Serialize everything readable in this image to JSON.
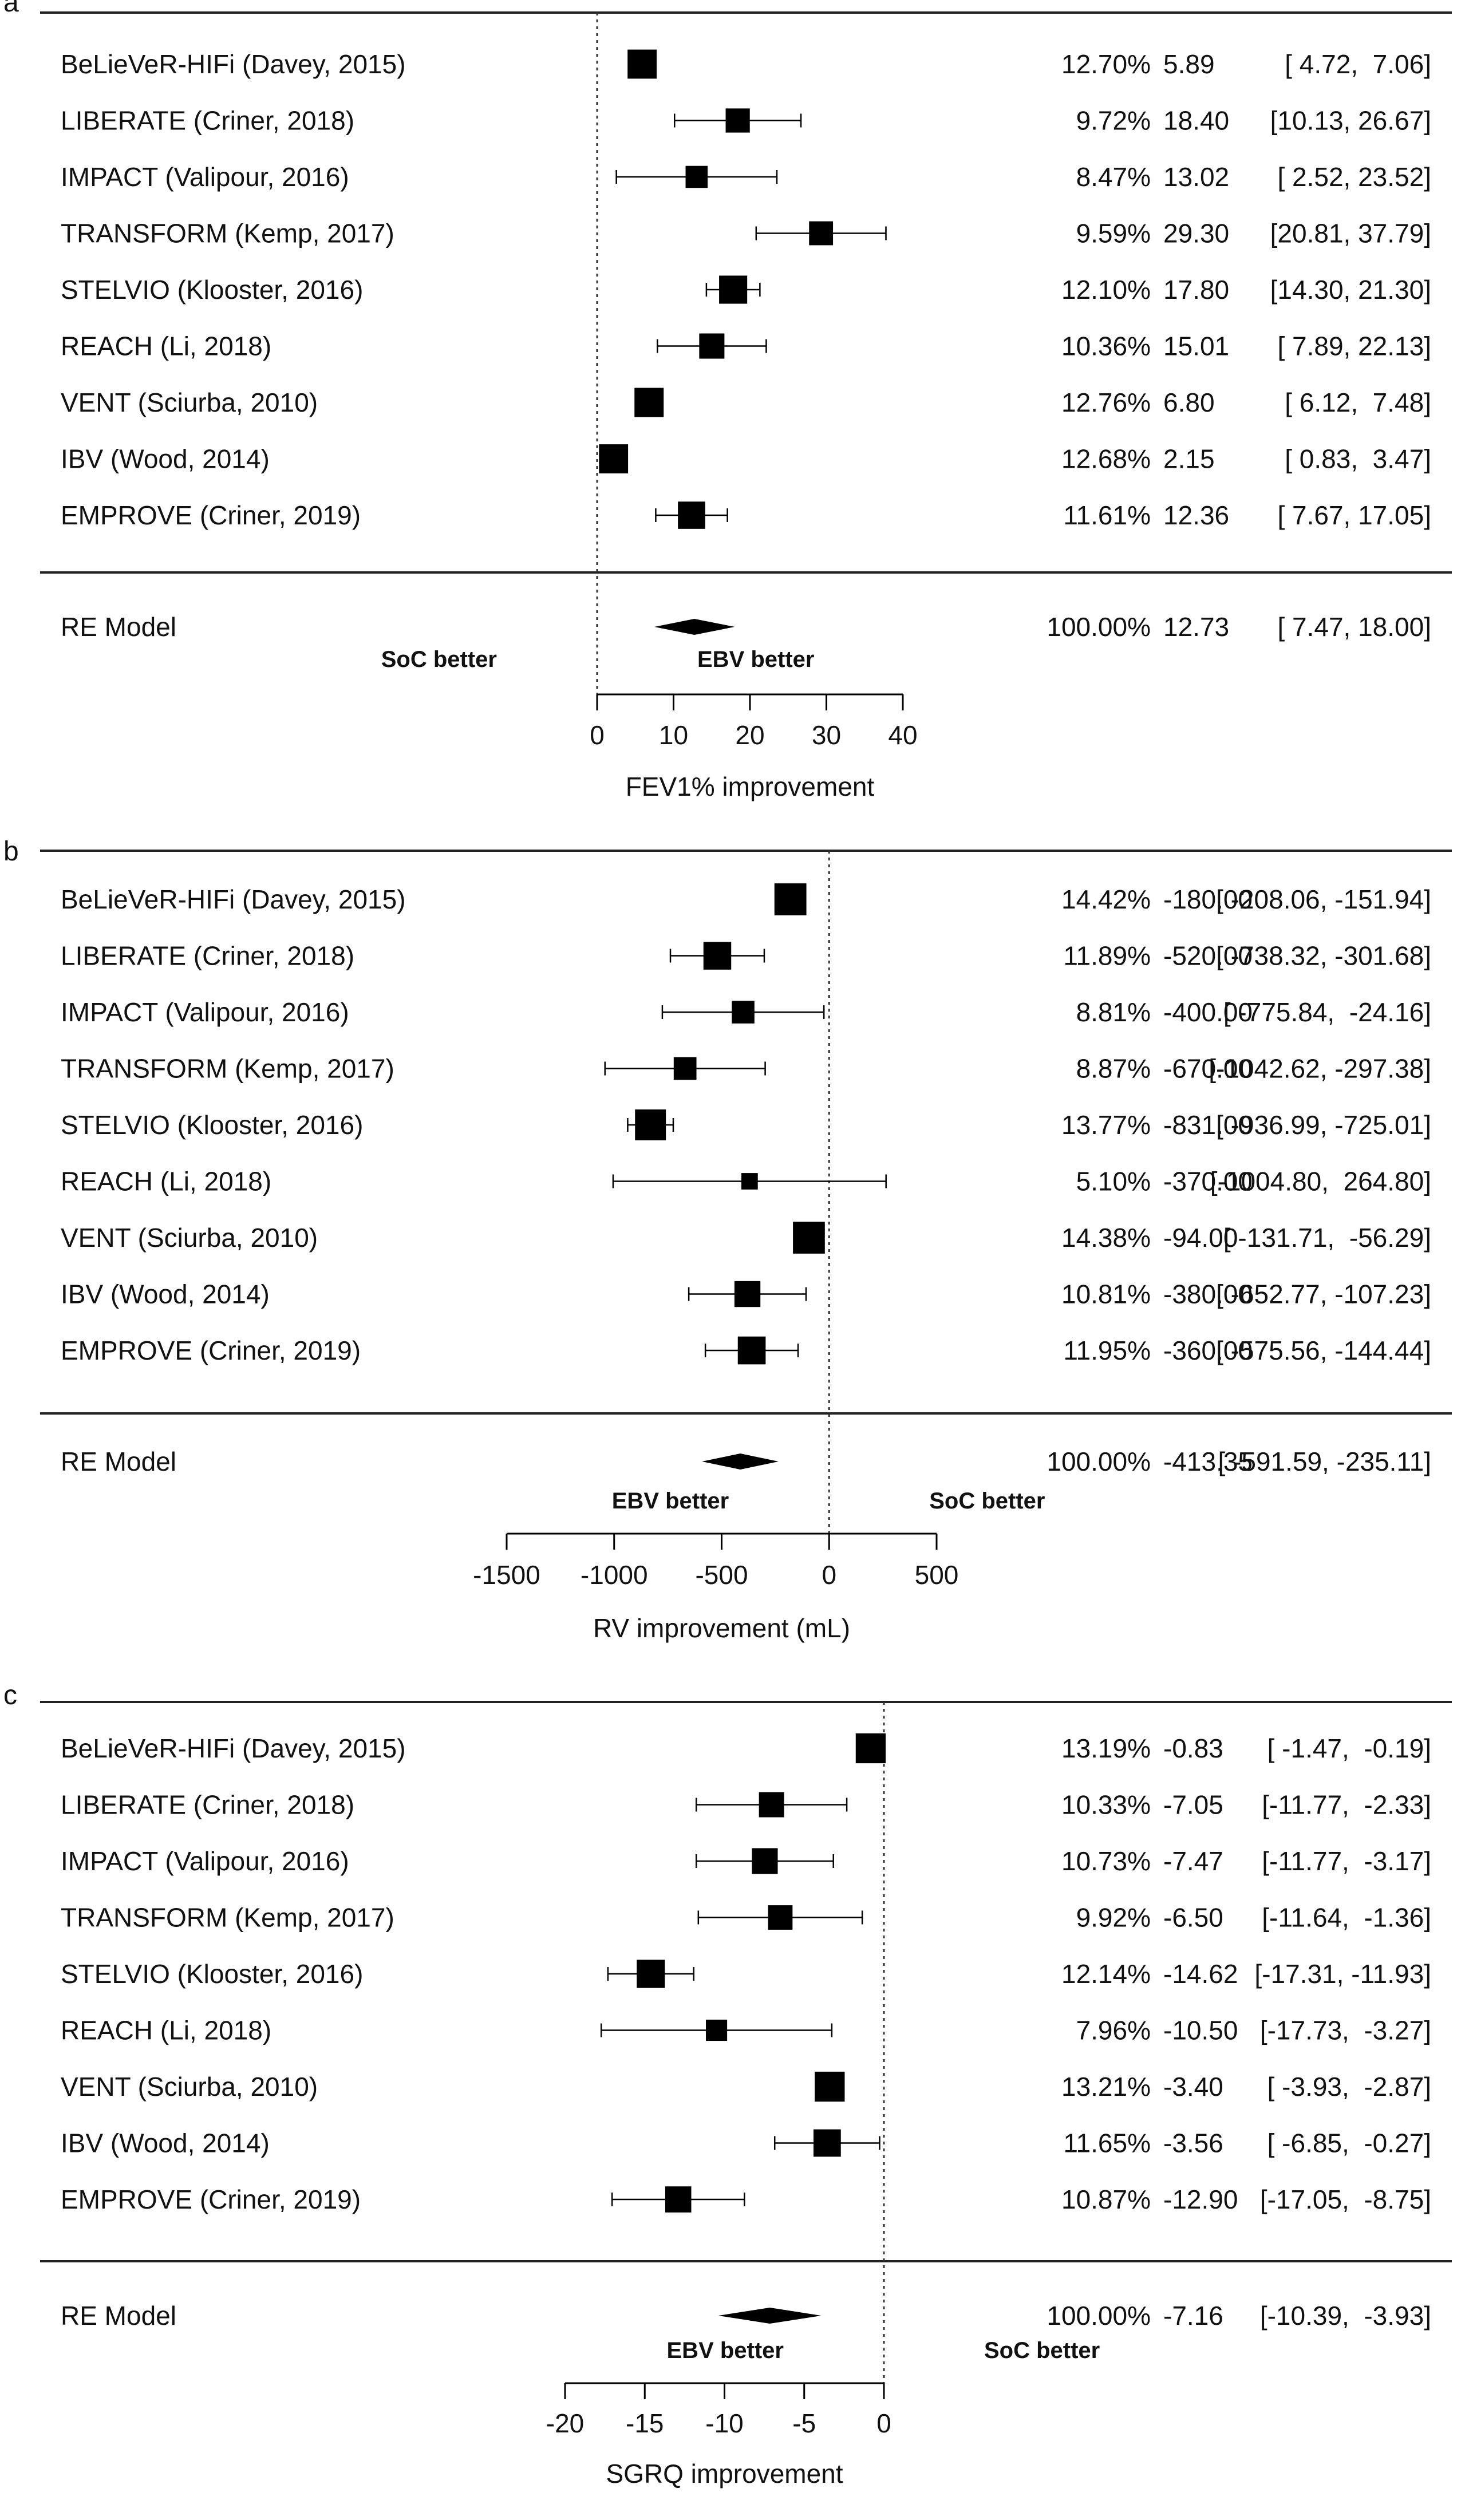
{
  "chart_data": [
    {
      "type": "forest",
      "panel_label": "a",
      "xlabel": "FEV1% improvement",
      "xlim": [
        0,
        40
      ],
      "xticks": [
        0,
        10,
        20,
        30,
        40
      ],
      "reference_line": 0,
      "left_note": "SoC better",
      "right_note": "EBV better",
      "studies": [
        {
          "name": "BeLieVeR-HIFi (Davey, 2015)",
          "weight": "12.70%",
          "estimate": 5.89,
          "lower": 4.72,
          "upper": 7.06,
          "est_text": "5.89",
          "ci_text": "[ 4.72,  7.06]"
        },
        {
          "name": "LIBERATE (Criner, 2018)",
          "weight": "9.72%",
          "estimate": 18.4,
          "lower": 10.13,
          "upper": 26.67,
          "est_text": "18.40",
          "ci_text": "[10.13, 26.67]"
        },
        {
          "name": "IMPACT (Valipour, 2016)",
          "weight": "8.47%",
          "estimate": 13.02,
          "lower": 2.52,
          "upper": 23.52,
          "est_text": "13.02",
          "ci_text": "[ 2.52, 23.52]"
        },
        {
          "name": "TRANSFORM (Kemp, 2017)",
          "weight": "9.59%",
          "estimate": 29.3,
          "lower": 20.81,
          "upper": 37.79,
          "est_text": "29.30",
          "ci_text": "[20.81, 37.79]"
        },
        {
          "name": "STELVIO (Klooster, 2016)",
          "weight": "12.10%",
          "estimate": 17.8,
          "lower": 14.3,
          "upper": 21.3,
          "est_text": "17.80",
          "ci_text": "[14.30, 21.30]"
        },
        {
          "name": "REACH (Li, 2018)",
          "weight": "10.36%",
          "estimate": 15.01,
          "lower": 7.89,
          "upper": 22.13,
          "est_text": "15.01",
          "ci_text": "[ 7.89, 22.13]"
        },
        {
          "name": "VENT (Sciurba, 2010)",
          "weight": "12.76%",
          "estimate": 6.8,
          "lower": 6.12,
          "upper": 7.48,
          "est_text": "6.80",
          "ci_text": "[ 6.12,  7.48]"
        },
        {
          "name": "IBV (Wood, 2014)",
          "weight": "12.68%",
          "estimate": 2.15,
          "lower": 0.83,
          "upper": 3.47,
          "est_text": "2.15",
          "ci_text": "[ 0.83,  3.47]"
        },
        {
          "name": "EMPROVE (Criner, 2019)",
          "weight": "11.61%",
          "estimate": 12.36,
          "lower": 7.67,
          "upper": 17.05,
          "est_text": "12.36",
          "ci_text": "[ 7.67, 17.05]"
        }
      ],
      "summary": {
        "name": "RE Model",
        "weight": "100.00%",
        "estimate": 12.73,
        "lower": 7.47,
        "upper": 18.0,
        "est_text": "12.73",
        "ci_text": "[ 7.47, 18.00]"
      }
    },
    {
      "type": "forest",
      "panel_label": "b",
      "xlabel": "RV improvement (mL)",
      "xlim": [
        -1500,
        500
      ],
      "xticks": [
        -1500,
        -1000,
        -500,
        0,
        500
      ],
      "reference_line": 0,
      "left_note": "EBV better",
      "right_note": "SoC better",
      "studies": [
        {
          "name": "BeLieVeR-HIFi (Davey, 2015)",
          "weight": "14.42%",
          "estimate": -180.0,
          "lower": -208.06,
          "upper": -151.94,
          "est_text": "-180.00",
          "ci_text": "[ -208.06, -151.94]"
        },
        {
          "name": "LIBERATE (Criner, 2018)",
          "weight": "11.89%",
          "estimate": -520.0,
          "lower": -738.32,
          "upper": -301.68,
          "est_text": "-520.00",
          "ci_text": "[ -738.32, -301.68]"
        },
        {
          "name": "IMPACT (Valipour, 2016)",
          "weight": "8.81%",
          "estimate": -400.0,
          "lower": -775.84,
          "upper": -24.16,
          "est_text": "-400.00",
          "ci_text": "[ -775.84,  -24.16]"
        },
        {
          "name": "TRANSFORM (Kemp, 2017)",
          "weight": "8.87%",
          "estimate": -670.0,
          "lower": -1042.62,
          "upper": -297.38,
          "est_text": "-670.00",
          "ci_text": "[-1042.62, -297.38]"
        },
        {
          "name": "STELVIO (Klooster, 2016)",
          "weight": "13.77%",
          "estimate": -831.0,
          "lower": -936.99,
          "upper": -725.01,
          "est_text": "-831.00",
          "ci_text": "[ -936.99, -725.01]"
        },
        {
          "name": "REACH (Li, 2018)",
          "weight": "5.10%",
          "estimate": -370.0,
          "lower": -1004.8,
          "upper": 264.8,
          "est_text": "-370.00",
          "ci_text": "[-1004.80,  264.80]"
        },
        {
          "name": "VENT (Sciurba, 2010)",
          "weight": "14.38%",
          "estimate": -94.0,
          "lower": -131.71,
          "upper": -56.29,
          "est_text": "-94.00",
          "ci_text": "[ -131.71,  -56.29]"
        },
        {
          "name": "IBV (Wood, 2014)",
          "weight": "10.81%",
          "estimate": -380.0,
          "lower": -652.77,
          "upper": -107.23,
          "est_text": "-380.00",
          "ci_text": "[ -652.77, -107.23]"
        },
        {
          "name": "EMPROVE (Criner, 2019)",
          "weight": "11.95%",
          "estimate": -360.0,
          "lower": -575.56,
          "upper": -144.44,
          "est_text": "-360.00",
          "ci_text": "[ -575.56, -144.44]"
        }
      ],
      "summary": {
        "name": "RE Model",
        "weight": "100.00%",
        "estimate": -413.35,
        "lower": -591.59,
        "upper": -235.11,
        "est_text": "-413.35",
        "ci_text": "[ -591.59, -235.11]"
      }
    },
    {
      "type": "forest",
      "panel_label": "c",
      "xlabel": "SGRQ improvement",
      "xlim": [
        -20,
        0
      ],
      "xticks": [
        -20,
        -15,
        -10,
        -5,
        0
      ],
      "reference_line": 0,
      "left_note": "EBV better",
      "right_note": "SoC better",
      "studies": [
        {
          "name": "BeLieVeR-HIFi (Davey, 2015)",
          "weight": "13.19%",
          "estimate": -0.83,
          "lower": -1.47,
          "upper": -0.19,
          "est_text": "-0.83",
          "ci_text": "[ -1.47,  -0.19]"
        },
        {
          "name": "LIBERATE (Criner, 2018)",
          "weight": "10.33%",
          "estimate": -7.05,
          "lower": -11.77,
          "upper": -2.33,
          "est_text": "-7.05",
          "ci_text": "[-11.77,  -2.33]"
        },
        {
          "name": "IMPACT (Valipour, 2016)",
          "weight": "10.73%",
          "estimate": -7.47,
          "lower": -11.77,
          "upper": -3.17,
          "est_text": "-7.47",
          "ci_text": "[-11.77,  -3.17]"
        },
        {
          "name": "TRANSFORM (Kemp, 2017)",
          "weight": "9.92%",
          "estimate": -6.5,
          "lower": -11.64,
          "upper": -1.36,
          "est_text": "-6.50",
          "ci_text": "[-11.64,  -1.36]"
        },
        {
          "name": "STELVIO (Klooster, 2016)",
          "weight": "12.14%",
          "estimate": -14.62,
          "lower": -17.31,
          "upper": -11.93,
          "est_text": "-14.62",
          "ci_text": "[-17.31, -11.93]"
        },
        {
          "name": "REACH (Li, 2018)",
          "weight": "7.96%",
          "estimate": -10.5,
          "lower": -17.73,
          "upper": -3.27,
          "est_text": "-10.50",
          "ci_text": "[-17.73,  -3.27]"
        },
        {
          "name": "VENT (Sciurba, 2010)",
          "weight": "13.21%",
          "estimate": -3.4,
          "lower": -3.93,
          "upper": -2.87,
          "est_text": "-3.40",
          "ci_text": "[ -3.93,  -2.87]"
        },
        {
          "name": "IBV (Wood, 2014)",
          "weight": "11.65%",
          "estimate": -3.56,
          "lower": -6.85,
          "upper": -0.27,
          "est_text": "-3.56",
          "ci_text": "[ -6.85,  -0.27]"
        },
        {
          "name": "EMPROVE (Criner, 2019)",
          "weight": "10.87%",
          "estimate": -12.9,
          "lower": -17.05,
          "upper": -8.75,
          "est_text": "-12.90",
          "ci_text": "[-17.05,  -8.75]"
        }
      ],
      "summary": {
        "name": "RE Model",
        "weight": "100.00%",
        "estimate": -7.16,
        "lower": -10.39,
        "upper": -3.93,
        "est_text": "-7.16",
        "ci_text": "[-10.39,  -3.93]"
      }
    }
  ]
}
